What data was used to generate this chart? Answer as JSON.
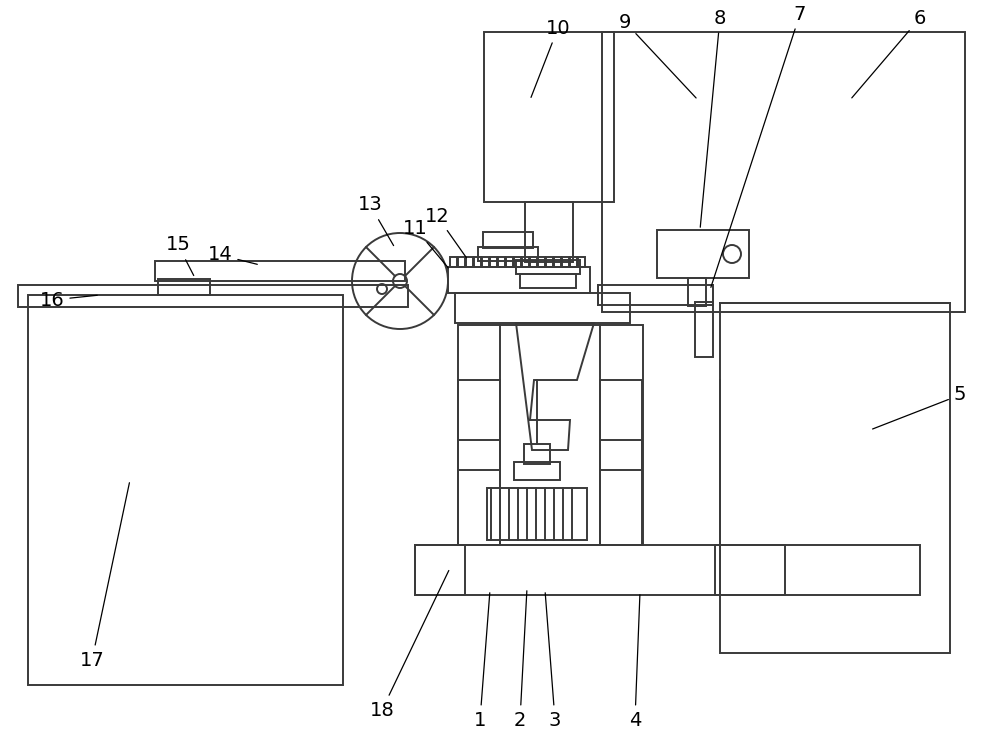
{
  "bg_color": "#ffffff",
  "line_color": "#3a3a3a",
  "line_width": 1.4,
  "fig_width": 10.0,
  "fig_height": 7.39,
  "dpi": 100
}
